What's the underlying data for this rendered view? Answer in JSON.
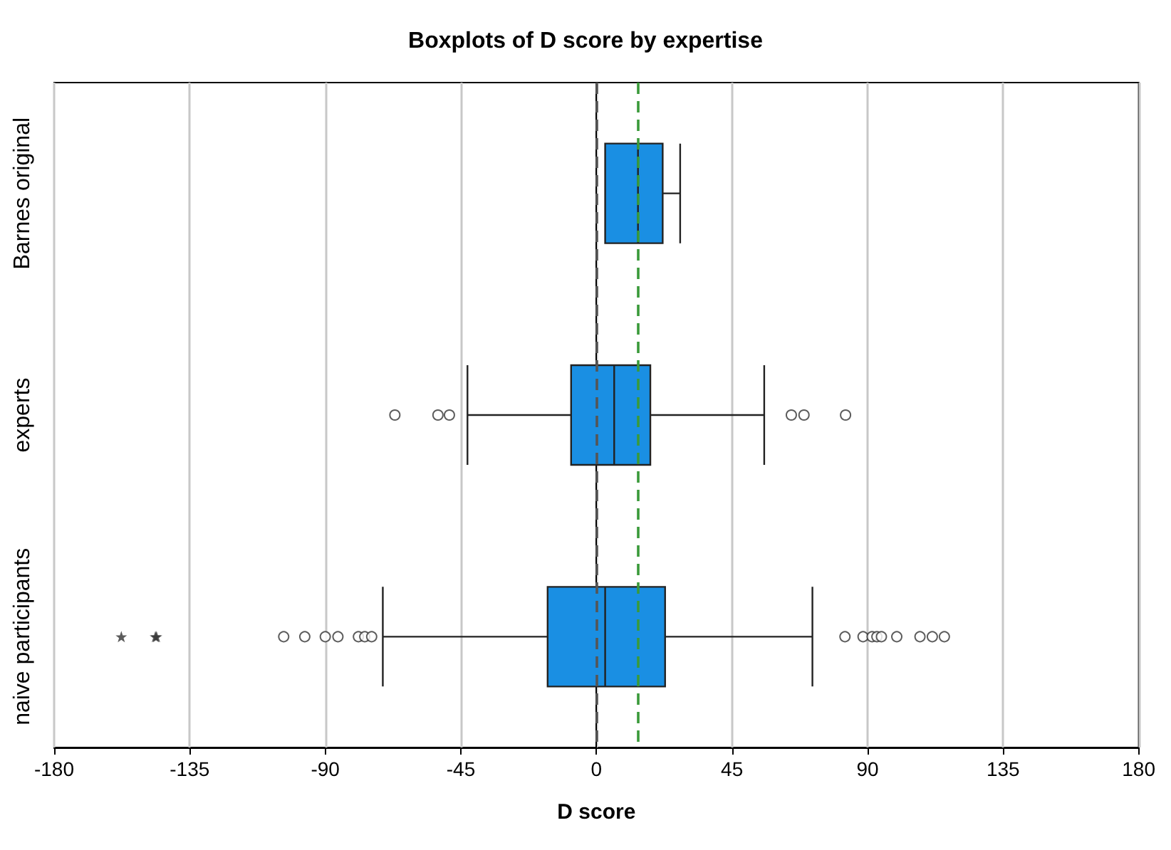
{
  "chart_data": {
    "type": "box",
    "title": "Boxplots of D score by expertise",
    "xlabel": "D score",
    "orientation": "horizontal",
    "categories": [
      "Barnes original",
      "experts",
      "naive participants"
    ],
    "color": "#1a8fe3",
    "boxes": [
      {
        "low": 2.9,
        "q1": 2.9,
        "median": 13.8,
        "q3": 22,
        "high": 27.8
      },
      {
        "low": -42.8,
        "q1": -8.4,
        "median": 5.9,
        "q3": 17.9,
        "high": 55.7,
        "outliers": [
          -66.9,
          -52.6,
          -48.8,
          64.7,
          68.9,
          82.7
        ]
      },
      {
        "low": -70.9,
        "q1": -16.2,
        "median": 2.9,
        "q3": 22.8,
        "high": 71.7,
        "outliers": [
          -157.7,
          -146.4,
          -146,
          -103.8,
          -96.8,
          -90,
          -85.8,
          -79,
          -76.9,
          -74.6,
          82.5,
          88.5,
          91.5,
          93.1,
          94.6,
          99.7,
          107.4,
          111.5,
          115.5
        ]
      }
    ],
    "xlim": [
      -180,
      180
    ],
    "xticks": [
      -180,
      -135,
      -90,
      -45,
      0,
      45,
      90,
      135,
      180
    ],
    "grid": "x",
    "ref_lines": [
      {
        "axis": "x",
        "value": 0,
        "color": "#555555",
        "line_style": "dashed"
      },
      {
        "axis": "x",
        "value": 13.8,
        "color": "#3a9a3a",
        "line_style": "dashed"
      }
    ]
  }
}
